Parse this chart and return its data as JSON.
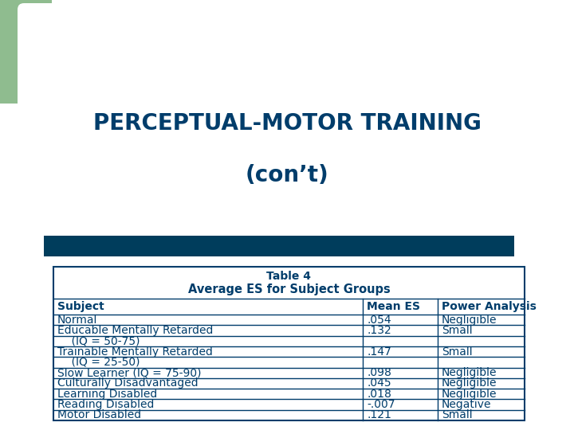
{
  "title_line1": "PERCEPTUAL-MOTOR TRAINING",
  "title_line2": "(con’t)",
  "title_color": "#003d6b",
  "title_fontsize": 20,
  "bg_color": "#ffffff",
  "green_rect_color": "#8fbc8f",
  "teal_bar_color": "#003d5c",
  "table_title1": "Table 4",
  "table_title2": "Average ES for Subject Groups",
  "table_header": [
    "Subject",
    "Mean ES",
    "Power Analysis"
  ],
  "table_data": [
    [
      "Normal",
      ".054",
      "Negligible"
    ],
    [
      "Educable Mentally Retarded",
      ".132",
      "Small"
    ],
    [
      "    (IQ = 50-75)",
      "",
      ""
    ],
    [
      "Trainable Mentally Retarded",
      ".147",
      "Small"
    ],
    [
      "    (IQ = 25-50)",
      "",
      ""
    ],
    [
      "Slow Learner (IQ = 75-90)",
      ".098",
      "Negligible"
    ],
    [
      "Culturally Disadvantaged",
      ".045",
      "Negligible"
    ],
    [
      "Learning Disabled",
      ".018",
      "Negligible"
    ],
    [
      "Reading Disabled",
      "-.007",
      "Negative"
    ],
    [
      "Motor Disabled",
      ".121",
      "Small"
    ]
  ],
  "table_text_color": "#003d6b",
  "table_border_color": "#003d6b",
  "table_title_fontsize": 10,
  "table_header_fontsize": 10,
  "table_data_fontsize": 10
}
